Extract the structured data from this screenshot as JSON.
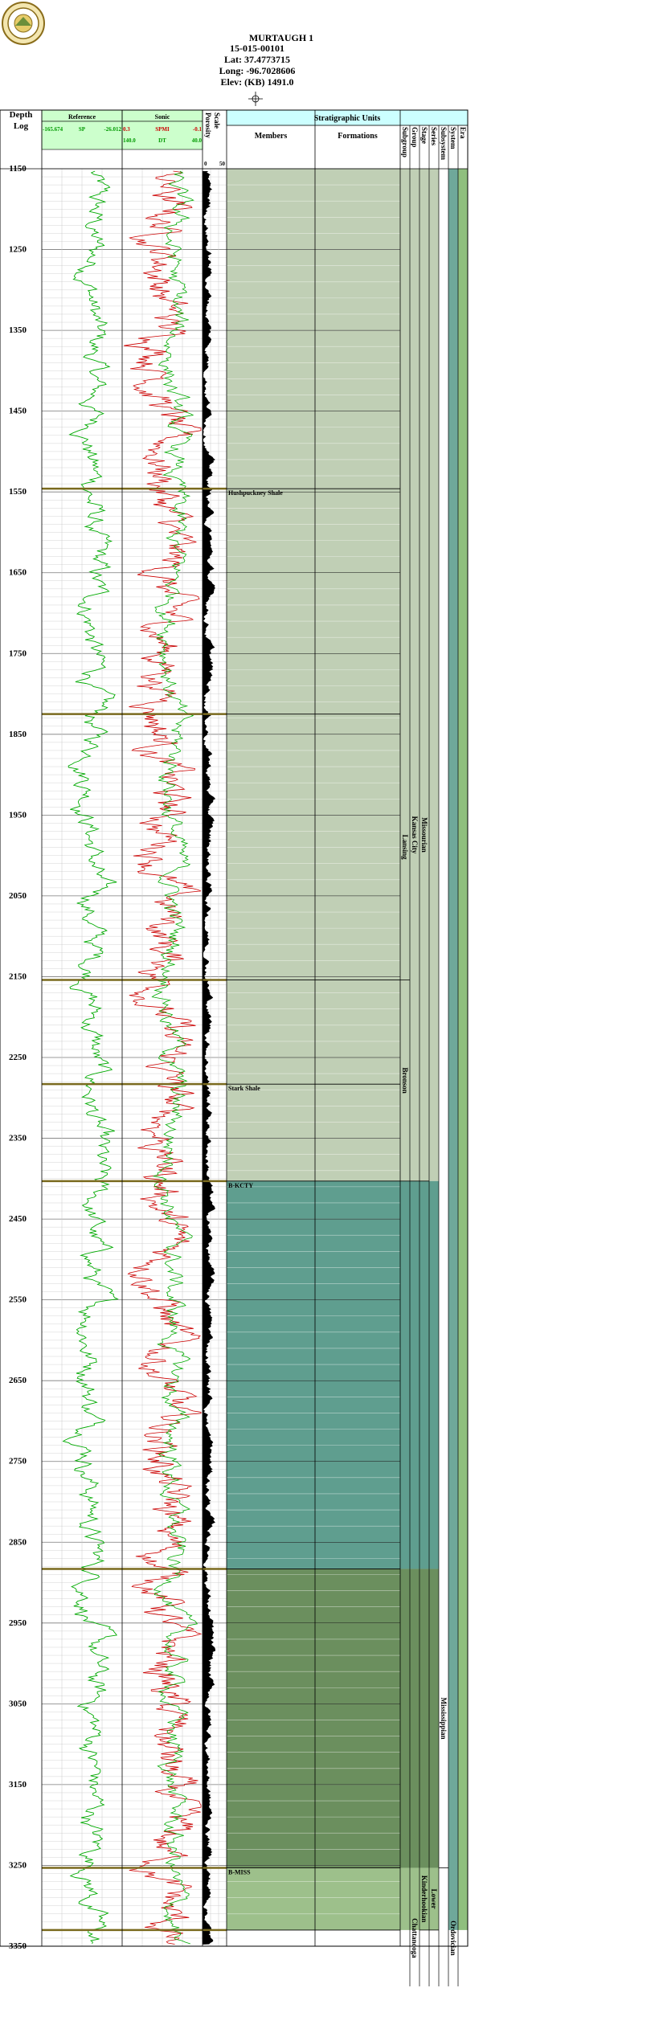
{
  "header": {
    "well_name": "MURTAUGH 1",
    "api": "15-015-00101",
    "lat": "Lat: 37.4773715",
    "long": "Long: -96.7028606",
    "elev": "Elev: (KB) 1491.0"
  },
  "columns": {
    "depth_title": "Depth",
    "depth_subtitle": "Log",
    "reference_title": "Reference",
    "sp_min": "-165.674",
    "sp_name": "SP",
    "sp_max": "-26.012",
    "sonic_title": "Sonic",
    "spmi_min": "0.3",
    "spmi_name": "SPMI",
    "spmi_max": "-0.1",
    "dt_min": "140.0",
    "dt_name": "DT",
    "dt_max": "40.0",
    "porosity_title": "Porosity",
    "porosity_subtitle": "Scale",
    "porosity_min": "0",
    "porosity_max": "50",
    "strat_title": "Stratigraphic Units",
    "members": "Members",
    "formations": "Formations",
    "rank_headers": [
      "Subgroup",
      "Group",
      "Stage",
      "Series",
      "Subsystem",
      "System",
      "Era"
    ]
  },
  "colors": {
    "header_fill": "#ccffcc",
    "strat_header_fill": "#ccffff",
    "sp_curve": "#00aa00",
    "spmi_curve": "#cc0000",
    "dt_curve": "#00aa00",
    "porosity_fill": "#000000",
    "zone_missourian": "#c0cfb5",
    "zone_kcty": "#5f9e8f",
    "zone_mississippian": "#6b8f5e",
    "zone_lower_miss": "#9dc08b",
    "system_strip": "#6fa89a",
    "era_strip": "#8fbf7e",
    "top_line": "#7a6a1e"
  },
  "chart_data": {
    "type": "well-log",
    "depth_range": [
      1150,
      3350
    ],
    "depth_ticks": [
      1150,
      1250,
      1350,
      1450,
      1550,
      1650,
      1750,
      1850,
      1950,
      2050,
      2150,
      2250,
      2350,
      2450,
      2550,
      2650,
      2750,
      2850,
      2950,
      3050,
      3150,
      3250,
      3350
    ],
    "curves": [
      {
        "name": "SP",
        "track": "Reference",
        "range": [
          -165.674,
          -26.012
        ]
      },
      {
        "name": "SPMI",
        "track": "Sonic",
        "range": [
          0.3,
          -0.1
        ]
      },
      {
        "name": "DT",
        "track": "Sonic",
        "range": [
          140.0,
          40.0
        ]
      }
    ],
    "tops": [
      {
        "depth": 1546,
        "label": "Hushpuckney Shale"
      },
      {
        "depth": 1825,
        "label": ""
      },
      {
        "depth": 2154,
        "label": ""
      },
      {
        "depth": 2283,
        "label": "Stark Shale"
      },
      {
        "depth": 2403,
        "label": "B-KCTY"
      },
      {
        "depth": 2883,
        "label": ""
      },
      {
        "depth": 3253,
        "label": "B-MISS"
      },
      {
        "depth": 3330,
        "label": ""
      }
    ],
    "units": [
      {
        "rank": "Subgroup",
        "name": "Lansing",
        "top": 1825,
        "base": 2154
      },
      {
        "rank": "Group",
        "name": "Kansas City",
        "top": 1546,
        "base": 2403
      },
      {
        "rank": "Subgroup",
        "name": "Bronson",
        "top": 2154,
        "base": 2403
      },
      {
        "rank": "Stage",
        "name": "Missourian",
        "top": 1546,
        "base": 2403
      },
      {
        "rank": "Subsystem",
        "name": "Mississippian",
        "top": 2883,
        "base": 3253
      },
      {
        "rank": "Series",
        "name": "Lower",
        "top": 3253,
        "base": 3330
      },
      {
        "rank": "Stage",
        "name": "Kinderhookian",
        "top": 3253,
        "base": 3330
      },
      {
        "rank": "Group",
        "name": "Chattanooga",
        "top": 3330,
        "base": 3350
      },
      {
        "rank": "System",
        "name": "Ordovician",
        "top": 3330,
        "base": 3350
      }
    ],
    "zones": [
      {
        "name": "missourian",
        "top": 1150,
        "base": 2403
      },
      {
        "name": "kcty",
        "top": 2403,
        "base": 2883
      },
      {
        "name": "mississippian",
        "top": 2883,
        "base": 3253
      },
      {
        "name": "lower_miss",
        "top": 3253,
        "base": 3330
      }
    ]
  }
}
